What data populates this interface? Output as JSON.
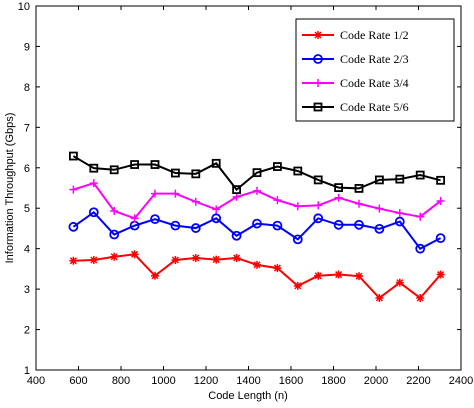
{
  "chart_data": {
    "type": "line",
    "title": "",
    "xlabel": "Code Length (n)",
    "ylabel": "Information Throughput (Gbps)",
    "xlim": [
      400,
      2400
    ],
    "ylim": [
      1,
      10
    ],
    "xticks": [
      400,
      600,
      800,
      1000,
      1200,
      1400,
      1600,
      1800,
      2000,
      2200,
      2400
    ],
    "yticks": [
      1,
      2,
      3,
      4,
      5,
      6,
      7,
      8,
      9,
      10
    ],
    "grid": false,
    "legend_position": "top-right",
    "x": [
      576,
      672,
      768,
      864,
      960,
      1056,
      1152,
      1248,
      1344,
      1440,
      1536,
      1632,
      1728,
      1824,
      1920,
      2016,
      2112,
      2208,
      2304
    ],
    "series": [
      {
        "name": "Code Rate 1/2",
        "color": "#ff0000",
        "marker": "star",
        "values": [
          3.7,
          3.72,
          3.8,
          3.86,
          3.33,
          3.72,
          3.77,
          3.73,
          3.77,
          3.6,
          3.52,
          3.08,
          3.33,
          3.36,
          3.32,
          2.78,
          3.16,
          2.78,
          3.36
        ]
      },
      {
        "name": "Code Rate 2/3",
        "color": "#0000ff",
        "marker": "circle",
        "values": [
          4.54,
          4.9,
          4.35,
          4.57,
          4.73,
          4.57,
          4.51,
          4.75,
          4.32,
          4.62,
          4.57,
          4.23,
          4.75,
          4.59,
          4.59,
          4.49,
          4.67,
          4.0,
          4.26
        ]
      },
      {
        "name": "Code Rate 3/4",
        "color": "#ff00ff",
        "marker": "plus",
        "values": [
          5.46,
          5.62,
          4.93,
          4.75,
          5.36,
          5.36,
          5.16,
          4.97,
          5.28,
          5.43,
          5.2,
          5.05,
          5.07,
          5.26,
          5.11,
          4.99,
          4.88,
          4.79,
          5.18
        ]
      },
      {
        "name": "Code Rate 5/6",
        "color": "#000000",
        "marker": "square",
        "values": [
          6.29,
          5.99,
          5.95,
          6.08,
          6.08,
          5.87,
          5.85,
          6.11,
          5.46,
          5.88,
          6.03,
          5.92,
          5.7,
          5.51,
          5.49,
          5.7,
          5.72,
          5.82,
          5.69
        ]
      }
    ]
  }
}
